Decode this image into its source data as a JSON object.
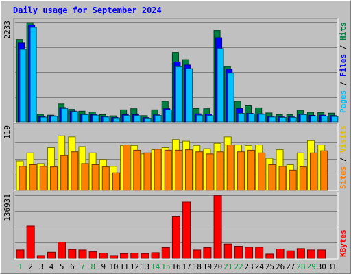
{
  "chart_data": [
    {
      "type": "bar",
      "title": "Daily usage for September 2024",
      "panel": "hits-files-pages",
      "categories": [
        "1",
        "2",
        "3",
        "4",
        "5",
        "6",
        "7",
        "8",
        "9",
        "10",
        "11",
        "12",
        "13",
        "14",
        "15",
        "16",
        "17",
        "18",
        "19",
        "20",
        "21",
        "22",
        "23",
        "24",
        "25",
        "26",
        "27",
        "28",
        "29",
        "30",
        "31"
      ],
      "ymax_label": "2233",
      "ylim": [
        0,
        2233
      ],
      "series": [
        {
          "name": "Hits",
          "color": "#008040",
          "values": [
            1840,
            2215,
            170,
            150,
            400,
            280,
            240,
            220,
            160,
            135,
            270,
            295,
            140,
            270,
            460,
            1550,
            1390,
            300,
            295,
            2040,
            1240,
            460,
            360,
            315,
            200,
            165,
            165,
            260,
            215,
            210,
            195
          ]
        },
        {
          "name": "Files",
          "color": "#0000ff",
          "values": [
            1760,
            2165,
            115,
            135,
            320,
            240,
            170,
            160,
            120,
            100,
            160,
            160,
            95,
            155,
            295,
            1340,
            1270,
            180,
            175,
            1880,
            1180,
            300,
            190,
            180,
            120,
            110,
            110,
            170,
            145,
            150,
            140
          ]
        },
        {
          "name": "Pages",
          "color": "#00c0ff",
          "values": [
            1620,
            2110,
            105,
            125,
            300,
            230,
            160,
            150,
            110,
            90,
            140,
            140,
            85,
            145,
            270,
            1230,
            1190,
            150,
            140,
            1640,
            1090,
            190,
            180,
            170,
            110,
            100,
            100,
            160,
            130,
            130,
            120
          ]
        }
      ]
    },
    {
      "type": "bar",
      "panel": "sites-visits",
      "categories": [
        "1",
        "2",
        "3",
        "4",
        "5",
        "6",
        "7",
        "8",
        "9",
        "10",
        "11",
        "12",
        "13",
        "14",
        "15",
        "16",
        "17",
        "18",
        "19",
        "20",
        "21",
        "22",
        "23",
        "24",
        "25",
        "26",
        "27",
        "28",
        "29",
        "30",
        "31"
      ],
      "ymax_label": "119",
      "ylim": [
        0,
        119
      ],
      "series": [
        {
          "name": "Visits",
          "color": "#ffff00",
          "values": [
            55,
            70,
            50,
            80,
            102,
            100,
            82,
            70,
            58,
            45,
            84,
            84,
            68,
            76,
            80,
            95,
            92,
            84,
            78,
            88,
            100,
            85,
            84,
            85,
            60,
            76,
            48,
            70,
            93,
            85,
            0
          ]
        },
        {
          "name": "Sites",
          "color": "#ff8000",
          "values": [
            45,
            48,
            45,
            44,
            65,
            72,
            50,
            48,
            44,
            33,
            85,
            75,
            70,
            77,
            75,
            75,
            76,
            72,
            68,
            72,
            85,
            72,
            75,
            70,
            48,
            45,
            38,
            44,
            70,
            74,
            0
          ]
        }
      ]
    },
    {
      "type": "bar",
      "panel": "kbytes",
      "categories": [
        "1",
        "2",
        "3",
        "4",
        "5",
        "6",
        "7",
        "8",
        "9",
        "10",
        "11",
        "12",
        "13",
        "14",
        "15",
        "16",
        "17",
        "18",
        "19",
        "20",
        "21",
        "22",
        "23",
        "24",
        "25",
        "26",
        "27",
        "28",
        "29",
        "30",
        "31"
      ],
      "ymax_label": "136931",
      "ylim": [
        0,
        136931
      ],
      "series": [
        {
          "name": "KBytes",
          "color": "#ff0000",
          "values": [
            18000,
            70000,
            6000,
            13000,
            35000,
            19000,
            18000,
            14000,
            11000,
            6000,
            10000,
            11000,
            10000,
            12000,
            23000,
            90000,
            122000,
            18000,
            23000,
            136000,
            31000,
            26000,
            24000,
            24000,
            9000,
            20000,
            16000,
            21000,
            18000,
            18000,
            0
          ]
        }
      ]
    }
  ],
  "legend": {
    "hits": "Hits",
    "files": "Files",
    "pages": "Pages",
    "visits": "Visits",
    "sites": "Sites",
    "kbytes": "KBytes",
    "separator": "/"
  },
  "weekend_days": [
    "1",
    "7",
    "8",
    "14",
    "15",
    "21",
    "22",
    "28",
    "29"
  ],
  "colors": {
    "background": "#c0c0c0",
    "title": "#0000ff",
    "label": "#000000",
    "weekend": "#00a040",
    "gridline": "#808080"
  }
}
